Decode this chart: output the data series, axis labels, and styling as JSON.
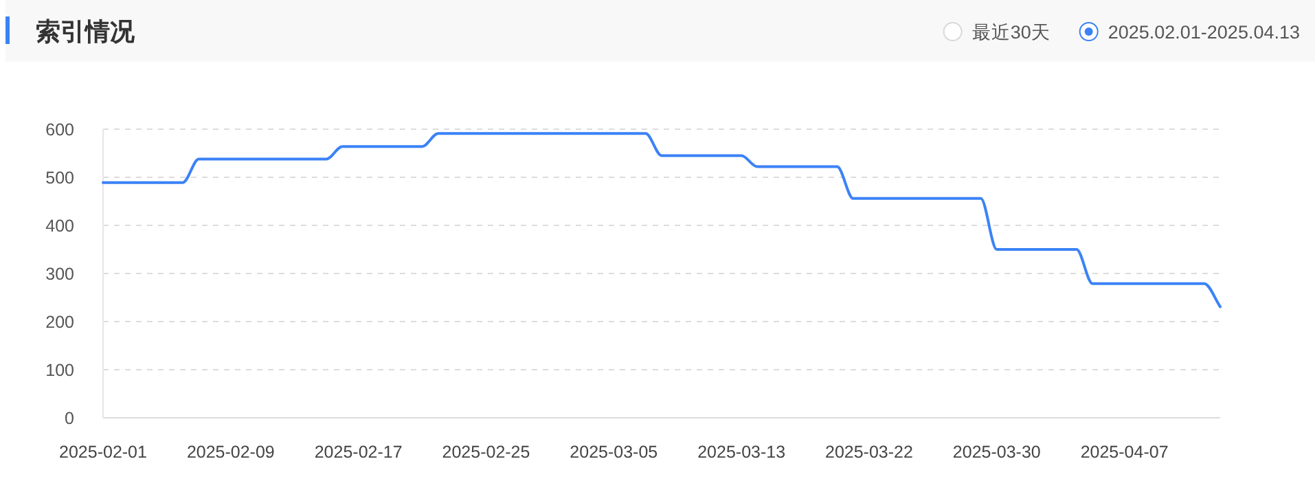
{
  "chart_data": {
    "type": "line",
    "title": "索引情况",
    "annotations": [
      "最近30天",
      "2025.02.01-2025.04.13"
    ],
    "categories": [
      "2025-02-01",
      null,
      null,
      null,
      null,
      null,
      null,
      null,
      "2025-02-09",
      null,
      null,
      null,
      null,
      null,
      null,
      null,
      "2025-02-17",
      null,
      null,
      null,
      null,
      null,
      null,
      null,
      "2025-02-25",
      null,
      null,
      null,
      null,
      null,
      null,
      null,
      "2025-03-05",
      null,
      null,
      null,
      null,
      null,
      null,
      null,
      "2025-03-13",
      null,
      null,
      null,
      null,
      null,
      null,
      null,
      "2025-03-22",
      null,
      null,
      null,
      null,
      null,
      null,
      null,
      "2025-03-30",
      null,
      null,
      null,
      null,
      null,
      null,
      null,
      "2025-04-07",
      null,
      null,
      null,
      null,
      null,
      null
    ],
    "series": [
      {
        "color": "#3b82f6",
        "values": [
          489,
          489,
          489,
          489,
          489,
          489,
          538,
          538,
          538,
          538,
          538,
          538,
          538,
          538,
          538,
          564,
          564,
          564,
          564,
          564,
          564,
          591,
          591,
          591,
          591,
          591,
          591,
          591,
          591,
          591,
          591,
          591,
          591,
          591,
          591,
          545,
          545,
          545,
          545,
          545,
          545,
          522,
          522,
          522,
          522,
          522,
          522,
          456,
          456,
          456,
          456,
          456,
          456,
          456,
          456,
          456,
          350,
          350,
          350,
          350,
          350,
          350,
          279,
          279,
          279,
          279,
          279,
          279,
          279,
          279,
          231
        ]
      }
    ],
    "ylim": [
      0,
      600
    ],
    "yticks": [
      0,
      100,
      200,
      300,
      400,
      500,
      600
    ],
    "grid": "y",
    "marker": "none",
    "line_style": "solid"
  }
}
